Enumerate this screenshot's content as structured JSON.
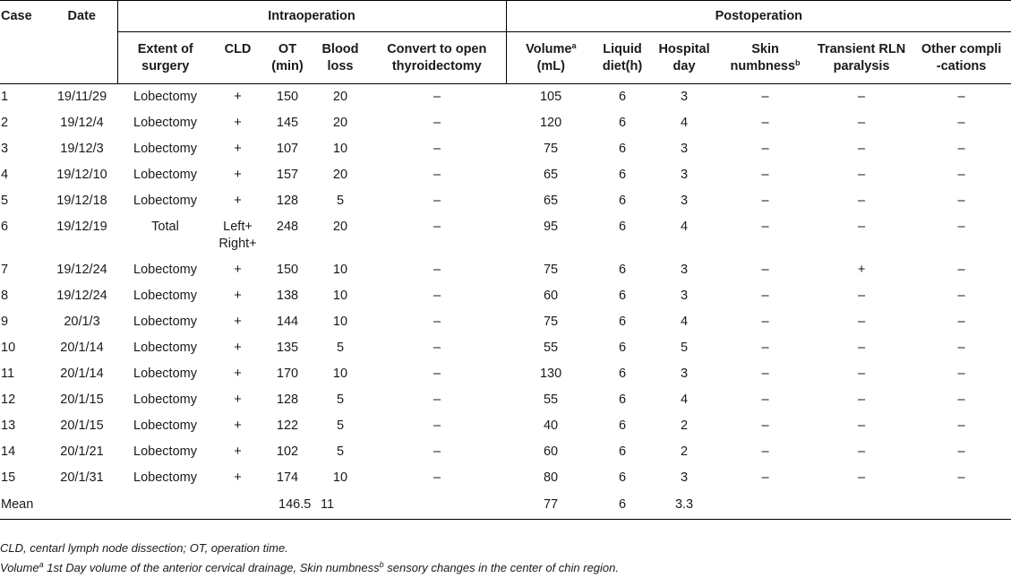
{
  "headers": {
    "case": "Case",
    "date": "Date",
    "intraoperation": "Intraoperation",
    "postoperation": "Postoperation",
    "extent_1": "Extent of",
    "extent_2": "surgery",
    "cld": "CLD",
    "ot_1": "OT",
    "ot_2": "(min)",
    "blood_1": "Blood",
    "blood_2": "loss",
    "convert_1": "Convert to open",
    "convert_2": "thyroidectomy",
    "volume_1": "Volume",
    "volume_sup": "a",
    "volume_2": "(mL)",
    "liquid_1": "Liquid",
    "liquid_2": "diet(h)",
    "hospital_1": "Hospital",
    "hospital_2": "day",
    "skin_1": "Skin",
    "skin_2": "numbness",
    "skin_sup": "b",
    "rln_1": "Transient RLN",
    "rln_2": "paralysis",
    "other_1": "Other compli",
    "other_2": "-cations"
  },
  "rows": [
    {
      "case": "1",
      "date": "19/11/29",
      "extent": "Lobectomy",
      "cld": "+",
      "ot": "150",
      "blood": "20",
      "convert": "–",
      "volume": "105",
      "liquid": "6",
      "hospital": "3",
      "skin": "–",
      "rln": "–",
      "other": "–"
    },
    {
      "case": "2",
      "date": "19/12/4",
      "extent": "Lobectomy",
      "cld": "+",
      "ot": "145",
      "blood": "20",
      "convert": "–",
      "volume": "120",
      "liquid": "6",
      "hospital": "4",
      "skin": "–",
      "rln": "–",
      "other": "–"
    },
    {
      "case": "3",
      "date": "19/12/3",
      "extent": "Lobectomy",
      "cld": "+",
      "ot": "107",
      "blood": "10",
      "convert": "–",
      "volume": "75",
      "liquid": "6",
      "hospital": "3",
      "skin": "–",
      "rln": "–",
      "other": "–"
    },
    {
      "case": "4",
      "date": "19/12/10",
      "extent": "Lobectomy",
      "cld": "+",
      "ot": "157",
      "blood": "20",
      "convert": "–",
      "volume": "65",
      "liquid": "6",
      "hospital": "3",
      "skin": "–",
      "rln": "–",
      "other": "–"
    },
    {
      "case": "5",
      "date": "19/12/18",
      "extent": "Lobectomy",
      "cld": "+",
      "ot": "128",
      "blood": "5",
      "convert": "–",
      "volume": "65",
      "liquid": "6",
      "hospital": "3",
      "skin": "–",
      "rln": "–",
      "other": "–"
    },
    {
      "case": "6",
      "date": "19/12/19",
      "extent": "Total",
      "cld": "Left+",
      "cld2": "Right+",
      "ot": "248",
      "blood": "20",
      "convert": "–",
      "volume": "95",
      "liquid": "6",
      "hospital": "4",
      "skin": "–",
      "rln": "–",
      "other": "–"
    },
    {
      "case": "7",
      "date": "19/12/24",
      "extent": "Lobectomy",
      "cld": "+",
      "ot": "150",
      "blood": "10",
      "convert": "–",
      "volume": "75",
      "liquid": "6",
      "hospital": "3",
      "skin": "–",
      "rln": "+",
      "other": "–"
    },
    {
      "case": "8",
      "date": "19/12/24",
      "extent": "Lobectomy",
      "cld": "+",
      "ot": "138",
      "blood": "10",
      "convert": "–",
      "volume": "60",
      "liquid": "6",
      "hospital": "3",
      "skin": "–",
      "rln": "–",
      "other": "–"
    },
    {
      "case": "9",
      "date": "20/1/3",
      "extent": "Lobectomy",
      "cld": "+",
      "ot": "144",
      "blood": "10",
      "convert": "–",
      "volume": "75",
      "liquid": "6",
      "hospital": "4",
      "skin": "–",
      "rln": "–",
      "other": "–"
    },
    {
      "case": "10",
      "date": "20/1/14",
      "extent": "Lobectomy",
      "cld": "+",
      "ot": "135",
      "blood": "5",
      "convert": "–",
      "volume": "55",
      "liquid": "6",
      "hospital": "5",
      "skin": "–",
      "rln": "–",
      "other": "–"
    },
    {
      "case": "11",
      "date": "20/1/14",
      "extent": "Lobectomy",
      "cld": "+",
      "ot": "170",
      "blood": "10",
      "convert": "–",
      "volume": "130",
      "liquid": "6",
      "hospital": "3",
      "skin": "–",
      "rln": "–",
      "other": "–"
    },
    {
      "case": "12",
      "date": "20/1/15",
      "extent": "Lobectomy",
      "cld": "+",
      "ot": "128",
      "blood": "5",
      "convert": "–",
      "volume": "55",
      "liquid": "6",
      "hospital": "4",
      "skin": "–",
      "rln": "–",
      "other": "–"
    },
    {
      "case": "13",
      "date": "20/1/15",
      "extent": "Lobectomy",
      "cld": "+",
      "ot": "122",
      "blood": "5",
      "convert": "–",
      "volume": "40",
      "liquid": "6",
      "hospital": "2",
      "skin": "–",
      "rln": "–",
      "other": "–"
    },
    {
      "case": "14",
      "date": "20/1/21",
      "extent": "Lobectomy",
      "cld": "+",
      "ot": "102",
      "blood": "5",
      "convert": "–",
      "volume": "60",
      "liquid": "6",
      "hospital": "2",
      "skin": "–",
      "rln": "–",
      "other": "–"
    },
    {
      "case": "15",
      "date": "20/1/31",
      "extent": "Lobectomy",
      "cld": "+",
      "ot": "174",
      "blood": "10",
      "convert": "–",
      "volume": "80",
      "liquid": "6",
      "hospital": "3",
      "skin": "–",
      "rln": "–",
      "other": "–"
    }
  ],
  "mean": {
    "label": "Mean",
    "ot": "146.5",
    "blood": "11",
    "volume": "77",
    "liquid": "6",
    "hospital": "3.3"
  },
  "notes": {
    "line1": "CLD, centarl lymph node dissection; OT, operation time.",
    "line2_a": "Volume",
    "line2_sup_a": "a",
    "line2_b": " 1st Day volume of the anterior cervical drainage, Skin numbness",
    "line2_sup_b": "b",
    "line2_c": " sensory changes in the center of chin region."
  }
}
